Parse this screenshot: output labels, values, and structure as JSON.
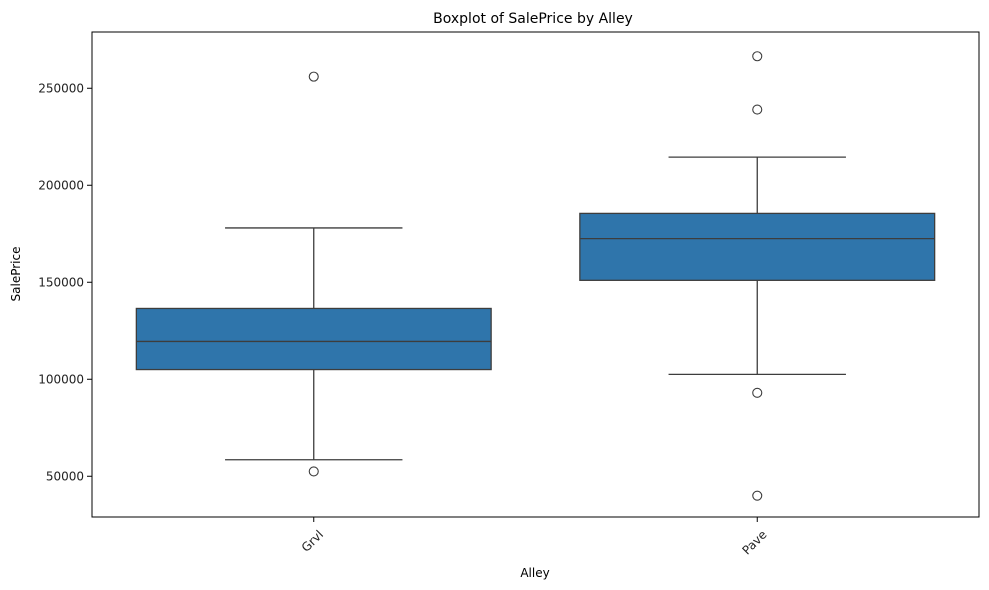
{
  "chart_data": {
    "type": "boxplot",
    "title": "Boxplot of SalePrice by Alley",
    "xlabel": "Alley",
    "ylabel": "SalePrice",
    "ylim": [
      29000,
      279000
    ],
    "y_ticks": [
      50000,
      100000,
      150000,
      200000,
      250000
    ],
    "grid": false,
    "x_tick_rotation_deg": 45,
    "box_color": "#2f75ab",
    "line_color": "#3d3d3d",
    "categories": [
      "Grvl",
      "Pave"
    ],
    "boxes": [
      {
        "category": "Grvl",
        "whisker_low": 58500,
        "q1": 105000,
        "median": 119500,
        "q3": 136500,
        "whisker_high": 178000,
        "outliers": [
          52500,
          256000
        ]
      },
      {
        "category": "Pave",
        "whisker_low": 102500,
        "q1": 151000,
        "median": 172500,
        "q3": 185500,
        "whisker_high": 214500,
        "outliers": [
          266500,
          239000,
          93000,
          40000
        ]
      }
    ]
  }
}
